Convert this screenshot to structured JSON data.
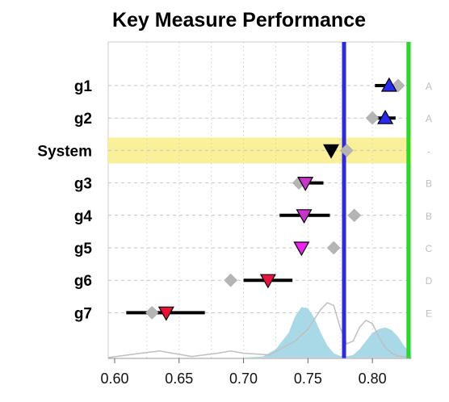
{
  "chart_data": {
    "type": "dot-interval",
    "title": "Key Measure Performance",
    "xlim": [
      0.595,
      0.83
    ],
    "x_ticks": [
      0.6,
      0.65,
      0.7,
      0.75,
      0.8
    ],
    "x_tick_labels": [
      "0.60",
      "0.65",
      "0.70",
      "0.75",
      "0.80"
    ],
    "vertical_grid": [
      0.625,
      0.65,
      0.675,
      0.7,
      0.725,
      0.75,
      0.775,
      0.8
    ],
    "reference_lines": [
      {
        "value": 0.778,
        "color": "#2a2ae6"
      },
      {
        "value": 0.828,
        "color": "#22dd22"
      }
    ],
    "rows": [
      {
        "label": "g1",
        "grade": "A",
        "estimate": 0.813,
        "ci": [
          0.802,
          0.818
        ],
        "benchmark": 0.82,
        "marker": "triangle-up",
        "color": "#2a2aee",
        "highlight": false
      },
      {
        "label": "g2",
        "grade": "A",
        "estimate": 0.81,
        "ci": [
          0.803,
          0.818
        ],
        "benchmark": 0.8,
        "marker": "triangle-up",
        "color": "#2a2aee",
        "highlight": false
      },
      {
        "label": "System",
        "grade": "-",
        "estimate": 0.768,
        "ci": [
          0.768,
          0.768
        ],
        "benchmark": 0.78,
        "marker": "triangle-down",
        "color": "#000000",
        "highlight": true
      },
      {
        "label": "g3",
        "grade": "B",
        "estimate": 0.748,
        "ci": [
          0.74,
          0.762
        ],
        "benchmark": 0.743,
        "marker": "triangle-down",
        "color": "#cc33cc",
        "highlight": false
      },
      {
        "label": "g4",
        "grade": "B",
        "estimate": 0.747,
        "ci": [
          0.728,
          0.767
        ],
        "benchmark": 0.786,
        "marker": "triangle-down",
        "color": "#cc33cc",
        "highlight": false
      },
      {
        "label": "g5",
        "grade": "C",
        "estimate": 0.745,
        "ci": [
          0.742,
          0.748
        ],
        "benchmark": 0.77,
        "marker": "triangle-down",
        "color": "#ee22ee",
        "highlight": false
      },
      {
        "label": "g6",
        "grade": "D",
        "estimate": 0.719,
        "ci": [
          0.7,
          0.738
        ],
        "benchmark": 0.69,
        "marker": "triangle-down",
        "color": "#ee1144",
        "highlight": false
      },
      {
        "label": "g7",
        "grade": "E",
        "estimate": 0.64,
        "ci": [
          0.609,
          0.67
        ],
        "benchmark": 0.629,
        "marker": "triangle-down",
        "color": "#ee1133",
        "highlight": false
      }
    ],
    "density_filled": {
      "color": "#a9d8e6",
      "x": [
        0.595,
        0.7,
        0.715,
        0.725,
        0.735,
        0.74,
        0.745,
        0.75,
        0.755,
        0.76,
        0.765,
        0.77,
        0.775,
        0.78,
        0.785,
        0.79,
        0.795,
        0.8,
        0.805,
        0.81,
        0.815,
        0.82,
        0.825,
        0.83
      ],
      "y": [
        0,
        0,
        0.02,
        0.15,
        0.45,
        0.75,
        0.92,
        0.9,
        0.72,
        0.45,
        0.22,
        0.08,
        0.03,
        0.02,
        0.05,
        0.15,
        0.3,
        0.45,
        0.52,
        0.55,
        0.5,
        0.38,
        0.2,
        0.08
      ]
    },
    "density_line": {
      "color": "#bfbfbf",
      "x": [
        0.595,
        0.62,
        0.635,
        0.645,
        0.66,
        0.68,
        0.69,
        0.7,
        0.72,
        0.74,
        0.75,
        0.76,
        0.765,
        0.77,
        0.775,
        0.78,
        0.785,
        0.79,
        0.795,
        0.8,
        0.805,
        0.81,
        0.815,
        0.82,
        0.83
      ],
      "y": [
        0,
        0.08,
        0.12,
        0.08,
        0.02,
        0.08,
        0.12,
        0.08,
        0.05,
        0.3,
        0.52,
        0.88,
        1.0,
        0.95,
        0.55,
        0.25,
        0.3,
        0.55,
        0.68,
        0.62,
        0.38,
        0.18,
        0.08,
        0.03,
        0
      ]
    }
  }
}
